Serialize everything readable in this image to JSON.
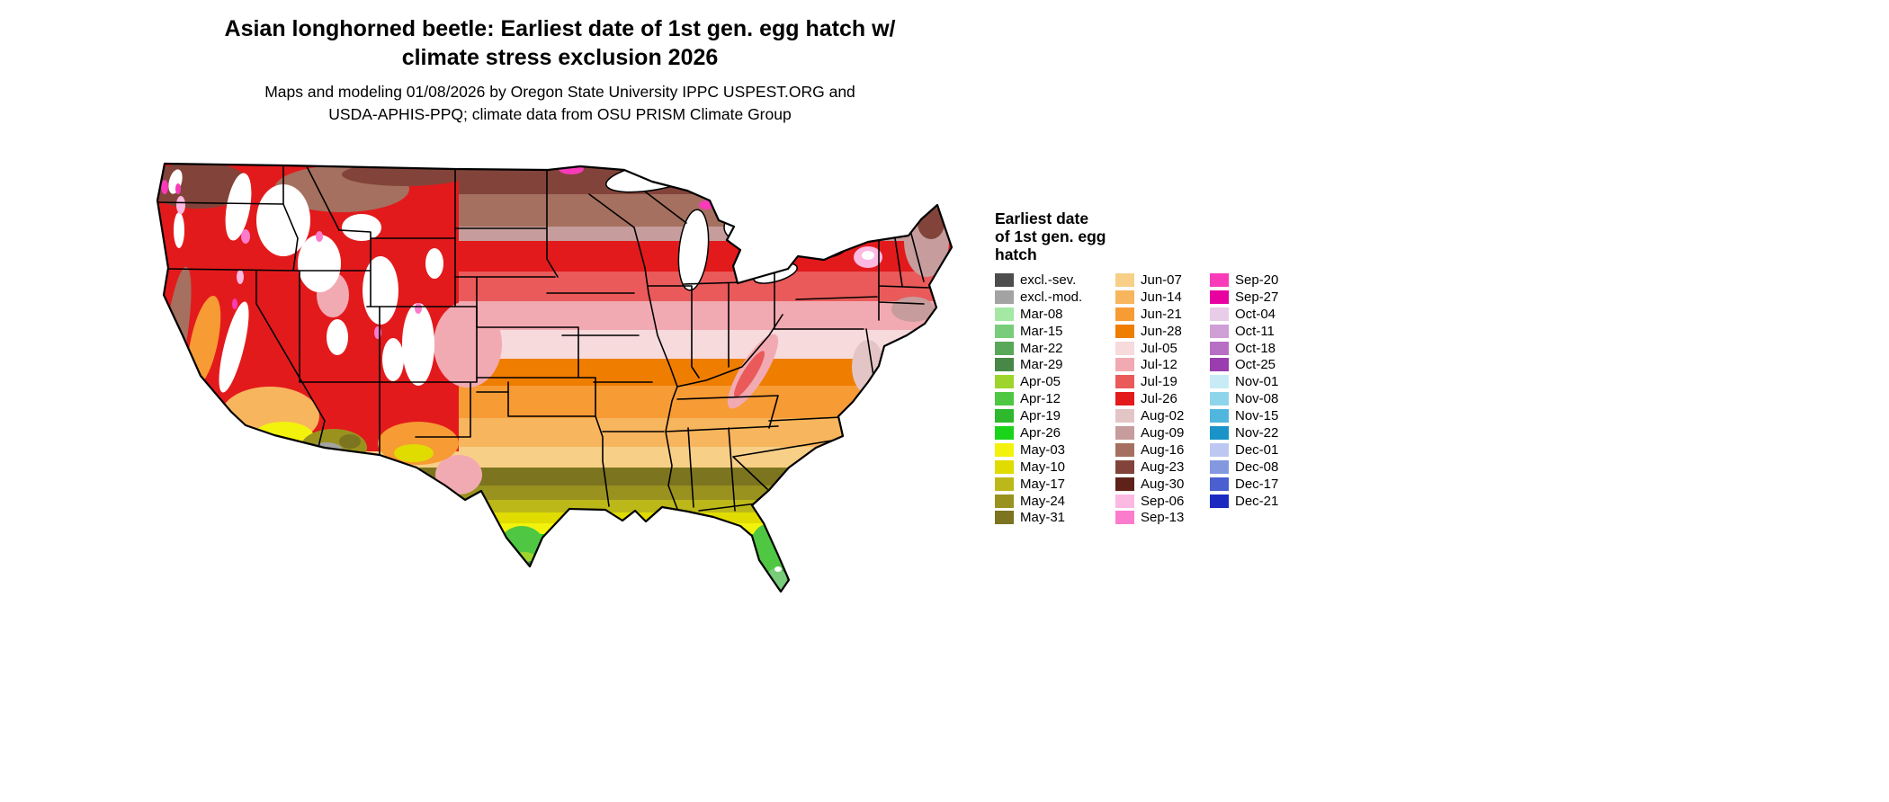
{
  "title": {
    "line1": "Asian longhorned beetle: Earliest date of 1st gen. egg hatch w/",
    "line2": "climate stress exclusion 2026"
  },
  "subtitle": {
    "line1": "Maps and modeling 01/08/2026 by Oregon State University IPPC USPEST.ORG and",
    "line2": "USDA-APHIS-PPQ; climate data from OSU PRISM Climate Group"
  },
  "legend": {
    "title_lines": [
      "Earliest date",
      "of 1st gen. egg",
      "hatch"
    ],
    "columns": [
      [
        {
          "label": "excl.-sev.",
          "color": "#4d4d4d"
        },
        {
          "label": "excl.-mod.",
          "color": "#a3a3a3"
        },
        {
          "label": "Mar-08",
          "color": "#a4e8a4"
        },
        {
          "label": "Mar-15",
          "color": "#79cc79"
        },
        {
          "label": "Mar-22",
          "color": "#59a859"
        },
        {
          "label": "Mar-29",
          "color": "#478747"
        },
        {
          "label": "Apr-05",
          "color": "#9ed52c"
        },
        {
          "label": "Apr-12",
          "color": "#4fc742"
        },
        {
          "label": "Apr-19",
          "color": "#2eb82e"
        },
        {
          "label": "Apr-26",
          "color": "#19d419"
        },
        {
          "label": "May-03",
          "color": "#f2f20d"
        },
        {
          "label": "May-10",
          "color": "#e0dc00"
        },
        {
          "label": "May-17",
          "color": "#bdb81a"
        },
        {
          "label": "May-24",
          "color": "#99921f"
        },
        {
          "label": "May-31",
          "color": "#7c741f"
        }
      ],
      [
        {
          "label": "Jun-07",
          "color": "#f7cf87"
        },
        {
          "label": "Jun-14",
          "color": "#f7b55e"
        },
        {
          "label": "Jun-21",
          "color": "#f79b35"
        },
        {
          "label": "Jun-28",
          "color": "#ef7d00"
        },
        {
          "label": "Jul-05",
          "color": "#f6dadc"
        },
        {
          "label": "Jul-12",
          "color": "#f2aab2"
        },
        {
          "label": "Jul-19",
          "color": "#ea5a5a"
        },
        {
          "label": "Jul-26",
          "color": "#e31a1c"
        },
        {
          "label": "Aug-02",
          "color": "#e4c5c5"
        },
        {
          "label": "Aug-09",
          "color": "#c69c9c"
        },
        {
          "label": "Aug-16",
          "color": "#a5705f"
        },
        {
          "label": "Aug-23",
          "color": "#82443a"
        },
        {
          "label": "Aug-30",
          "color": "#5e2218"
        },
        {
          "label": "Sep-06",
          "color": "#fcb9e2"
        },
        {
          "label": "Sep-13",
          "color": "#fb7ccc"
        }
      ],
      [
        {
          "label": "Sep-20",
          "color": "#f93ab9"
        },
        {
          "label": "Sep-27",
          "color": "#e800a1"
        },
        {
          "label": "Oct-04",
          "color": "#e7cde8"
        },
        {
          "label": "Oct-11",
          "color": "#cf9fd6"
        },
        {
          "label": "Oct-18",
          "color": "#b76fc4"
        },
        {
          "label": "Oct-25",
          "color": "#9a3dae"
        },
        {
          "label": "Nov-01",
          "color": "#c7ecf5"
        },
        {
          "label": "Nov-08",
          "color": "#8ed5ec"
        },
        {
          "label": "Nov-15",
          "color": "#51b6de"
        },
        {
          "label": "Nov-22",
          "color": "#1a93c9"
        },
        {
          "label": "Dec-01",
          "color": "#bcc8f2"
        },
        {
          "label": "Dec-08",
          "color": "#8498e0"
        },
        {
          "label": "Dec-17",
          "color": "#4a5fd0"
        },
        {
          "label": "Dec-21",
          "color": "#1b2bc0"
        }
      ]
    ]
  },
  "map": {
    "region_label": "Continental United States",
    "colors": {
      "blank": "#ffffff",
      "lake": "#ffffff",
      "outline": "#000000"
    }
  }
}
